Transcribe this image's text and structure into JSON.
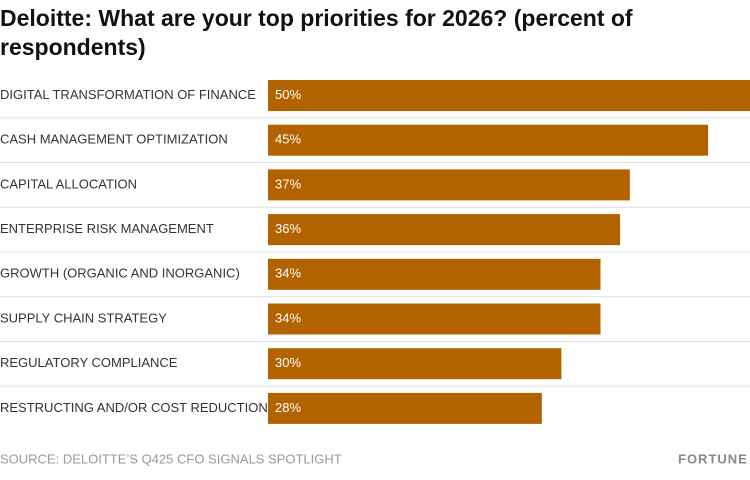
{
  "chart_data": {
    "type": "bar",
    "orientation": "horizontal",
    "title": "Deloitte: What are your top priorities for 2026? (percent of respondents)",
    "categories": [
      "DIGITAL TRANSFORMATION OF FINANCE",
      "CASH MANAGEMENT OPTIMIZATION",
      "CAPITAL ALLOCATION",
      "ENTERPRISE RISK MANAGEMENT",
      "GROWTH (ORGANIC AND INORGANIC)",
      "SUPPLY CHAIN STRATEGY",
      "REGULATORY COMPLIANCE",
      "RESTRUCTING AND/OR COST REDUCTIONS"
    ],
    "values": [
      50,
      45,
      37,
      36,
      34,
      34,
      30,
      28
    ],
    "value_labels": [
      "50%",
      "45%",
      "37%",
      "36%",
      "34%",
      "34%",
      "30%",
      "28%"
    ],
    "color": "#b36200",
    "source": "SOURCE: DELOITTE’S Q425 CFO SIGNALS SPOTLIGHT",
    "logo": "FORTUNE"
  }
}
